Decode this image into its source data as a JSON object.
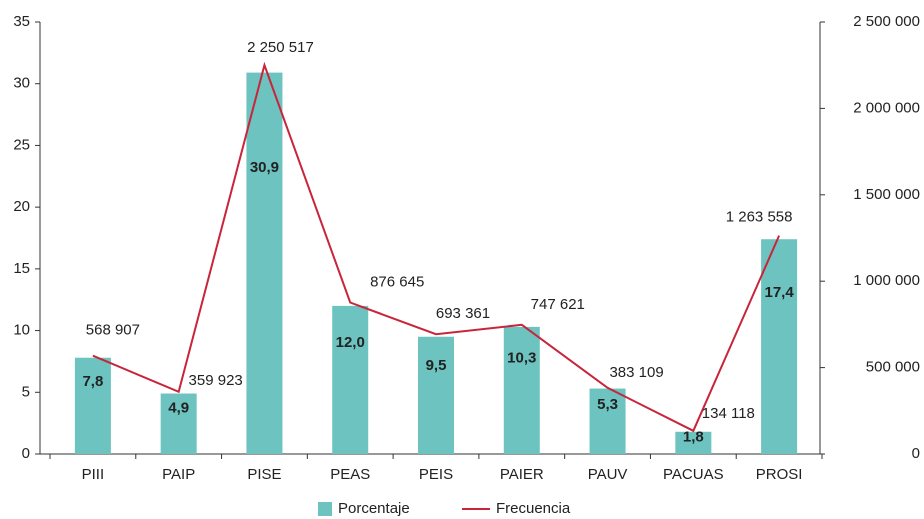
{
  "chart_data": {
    "type": "bar",
    "categories": [
      "PIII",
      "PAIP",
      "PISE",
      "PEAS",
      "PEIS",
      "PAIER",
      "PAUV",
      "PACUAS",
      "PROSI"
    ],
    "series": [
      {
        "name": "Porcentaje",
        "color": "#6cc3bf",
        "values": [
          7.8,
          4.9,
          30.9,
          12.0,
          9.5,
          10.3,
          5.3,
          1.8,
          17.4
        ],
        "value_labels": [
          "7,8",
          "4,9",
          "30,9",
          "12,0",
          "9,5",
          "10,3",
          "5,3",
          "1,8",
          "17,4"
        ]
      },
      {
        "name": "Frecuencia",
        "type": "line",
        "axis": "y2",
        "color": "#c8243a",
        "values": [
          568907,
          359923,
          2250517,
          876645,
          693361,
          747621,
          383109,
          134118,
          1263558
        ],
        "value_labels": [
          "568 907",
          "359 923",
          "2 250 517",
          "876 645",
          "693 361",
          "747 621",
          "383 109",
          "134 118",
          "1 263 558"
        ]
      }
    ],
    "ylim": [
      0,
      35
    ],
    "yticks": [
      0,
      5,
      10,
      15,
      20,
      25,
      30,
      35
    ],
    "y2lim": [
      0,
      2500000
    ],
    "y2ticks": [
      0,
      {
        "value": 500000,
        "label": "500 000"
      },
      {
        "value": 1000000,
        "label": "1 000 000"
      },
      {
        "value": 1500000,
        "label": "1 500 000"
      },
      {
        "value": 2000000,
        "label": "2 000 000"
      },
      {
        "value": 2500000,
        "label": "2 500 000"
      }
    ],
    "legend": "bottom"
  }
}
